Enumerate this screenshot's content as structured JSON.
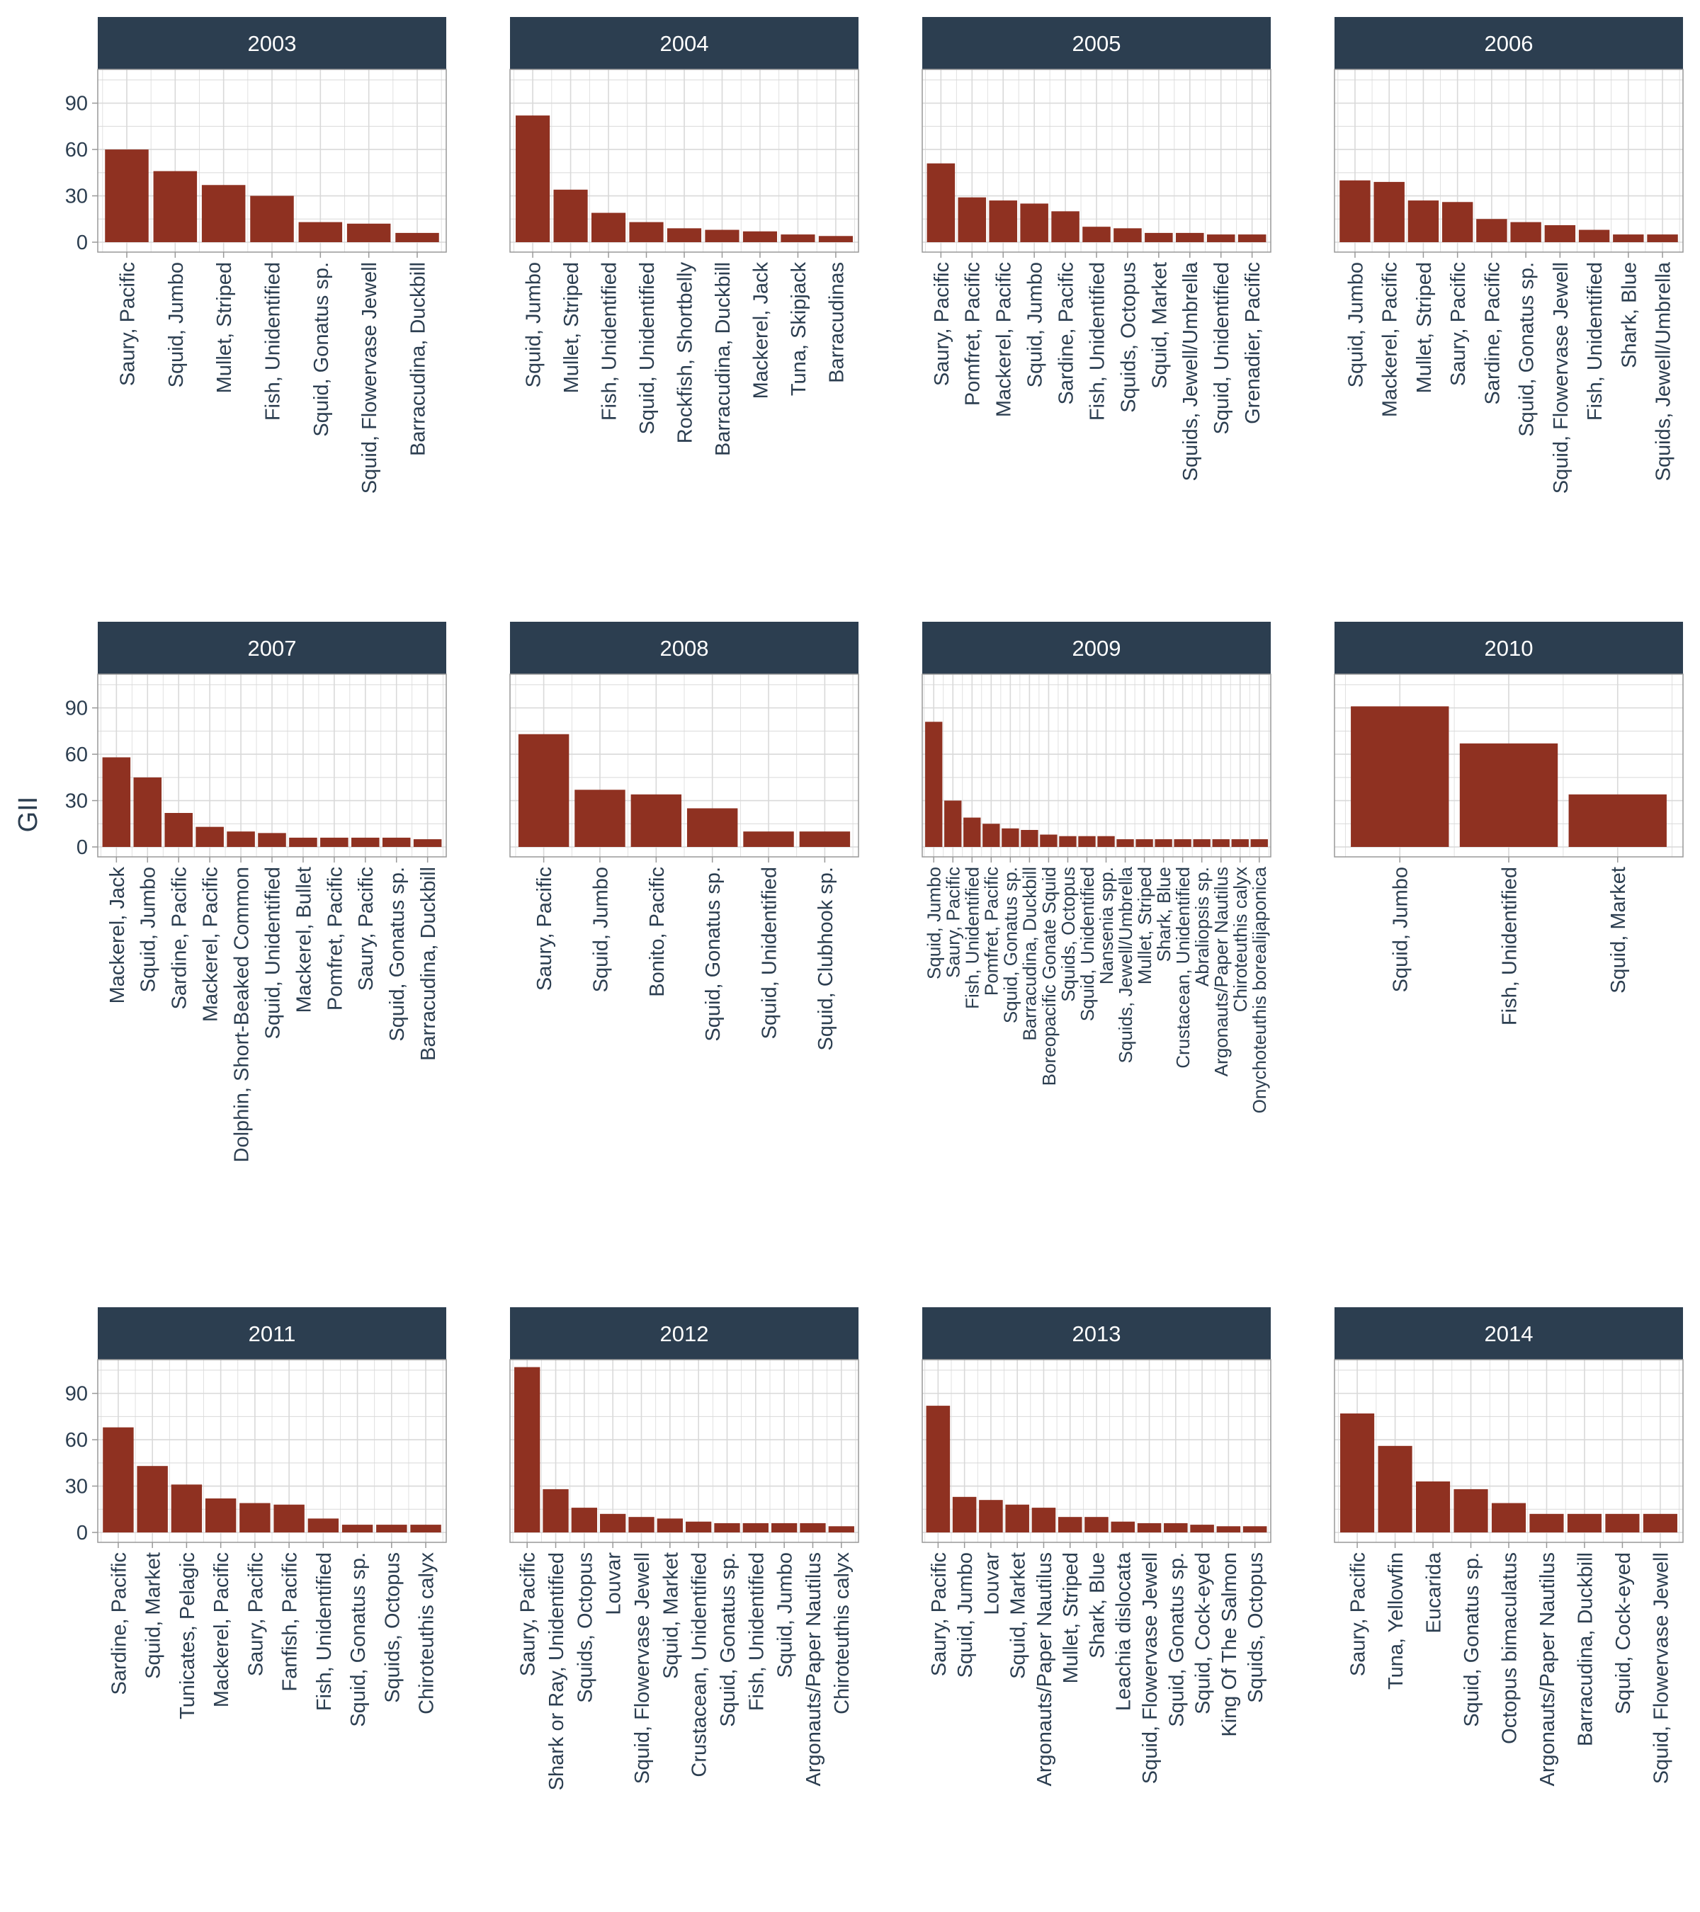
{
  "colors": {
    "bar": "#8f3121",
    "strip_bg": "#2c3e50",
    "strip_text": "#ffffff",
    "grid": "#d9d9d9",
    "panel_border": "#999999",
    "axis_text": "#2c3e50"
  },
  "ylabel": "GII",
  "chart_data": [
    {
      "type": "bar",
      "title": "2003",
      "ylim": [
        0,
        110
      ],
      "yticks": [
        0,
        30,
        60,
        90
      ],
      "categories": [
        "Saury, Pacific",
        "Squid, Jumbo",
        "Mullet, Striped",
        "Fish, Unidentified",
        "Squid, Gonatus sp.",
        "Squid, Flowervase Jewell",
        "Barracudina, Duckbill"
      ],
      "values": [
        60,
        46,
        37,
        30,
        13,
        12,
        6
      ]
    },
    {
      "type": "bar",
      "title": "2004",
      "ylim": [
        0,
        110
      ],
      "yticks": [
        0,
        30,
        60,
        90
      ],
      "categories": [
        "Squid, Jumbo",
        "Mullet, Striped",
        "Fish, Unidentified",
        "Squid, Unidentified",
        "Rockfish, Shortbelly",
        "Barracudina, Duckbill",
        "Mackerel, Jack",
        "Tuna, Skipjack",
        "Barracudinas"
      ],
      "values": [
        82,
        34,
        19,
        13,
        9,
        8,
        7,
        5,
        4
      ]
    },
    {
      "type": "bar",
      "title": "2005",
      "ylim": [
        0,
        110
      ],
      "yticks": [
        0,
        30,
        60,
        90
      ],
      "categories": [
        "Saury, Pacific",
        "Pomfret, Pacific",
        "Mackerel, Pacific",
        "Squid, Jumbo",
        "Sardine, Pacific",
        "Fish, Unidentified",
        "Squids, Octopus",
        "Squid, Market",
        "Squids, Jewell/Umbrella",
        "Squid, Unidentified",
        "Grenadier, Pacific"
      ],
      "values": [
        51,
        29,
        27,
        25,
        20,
        10,
        9,
        6,
        6,
        5,
        5
      ]
    },
    {
      "type": "bar",
      "title": "2006",
      "ylim": [
        0,
        110
      ],
      "yticks": [
        0,
        30,
        60,
        90
      ],
      "categories": [
        "Squid, Jumbo",
        "Mackerel, Pacific",
        "Mullet, Striped",
        "Saury, Pacific",
        "Sardine, Pacific",
        "Squid, Gonatus sp.",
        "Squid, Flowervase Jewell",
        "Fish, Unidentified",
        "Shark, Blue",
        "Squids, Jewell/Umbrella"
      ],
      "values": [
        40,
        39,
        27,
        26,
        15,
        13,
        11,
        8,
        5,
        5
      ]
    },
    {
      "type": "bar",
      "title": "2007",
      "ylim": [
        0,
        110
      ],
      "yticks": [
        0,
        30,
        60,
        90
      ],
      "categories": [
        "Mackerel, Jack",
        "Squid, Jumbo",
        "Sardine, Pacific",
        "Mackerel, Pacific",
        "Dolphin, Short-Beaked Common",
        "Squid, Unidentified",
        "Mackerel, Bullet",
        "Pomfret, Pacific",
        "Saury, Pacific",
        "Squid, Gonatus sp.",
        "Barracudina, Duckbill"
      ],
      "values": [
        58,
        45,
        22,
        13,
        10,
        9,
        6,
        6,
        6,
        6,
        5
      ]
    },
    {
      "type": "bar",
      "title": "2008",
      "ylim": [
        0,
        110
      ],
      "yticks": [
        0,
        30,
        60,
        90
      ],
      "categories": [
        "Saury, Pacific",
        "Squid, Jumbo",
        "Bonito, Pacific",
        "Squid, Gonatus sp.",
        "Squid, Unidentified",
        "Squid, Clubhook sp."
      ],
      "values": [
        73,
        37,
        34,
        25,
        10,
        10
      ]
    },
    {
      "type": "bar",
      "title": "2009",
      "ylim": [
        0,
        110
      ],
      "yticks": [
        0,
        30,
        60,
        90
      ],
      "categories": [
        "Squid, Jumbo",
        "Saury, Pacific",
        "Fish, Unidentified",
        "Pomfret, Pacific",
        "Squid, Gonatus sp.",
        "Barracudina, Duckbill",
        "Boreopacific Gonate Squid",
        "Squids, Octopus",
        "Squid, Unidentified",
        "Nansenia spp.",
        "Squids, Jewell/Umbrella",
        "Mullet, Striped",
        "Shark, Blue",
        "Crustacean, Unidentified",
        "Abraliopsis sp.",
        "Argonauts/Paper Nautilus",
        "Chiroteuthis calyx",
        "Onychoteuthis borealijaponica"
      ],
      "values": [
        81,
        30,
        19,
        15,
        12,
        11,
        8,
        7,
        7,
        7,
        5,
        5,
        5,
        5,
        5,
        5,
        5,
        5
      ]
    },
    {
      "type": "bar",
      "title": "2010",
      "ylim": [
        0,
        110
      ],
      "yticks": [
        0,
        30,
        60,
        90
      ],
      "categories": [
        "Squid, Jumbo",
        "Fish, Unidentified",
        "Squid, Market"
      ],
      "values": [
        91,
        67,
        34
      ]
    },
    {
      "type": "bar",
      "title": "2011",
      "ylim": [
        0,
        110
      ],
      "yticks": [
        0,
        30,
        60,
        90
      ],
      "categories": [
        "Sardine, Pacific",
        "Squid, Market",
        "Tunicates, Pelagic",
        "Mackerel, Pacific",
        "Saury, Pacific",
        "Fanfish, Pacific",
        "Fish, Unidentified",
        "Squid, Gonatus sp.",
        "Squids, Octopus",
        "Chiroteuthis calyx"
      ],
      "values": [
        68,
        43,
        31,
        22,
        19,
        18,
        9,
        5,
        5,
        5
      ]
    },
    {
      "type": "bar",
      "title": "2012",
      "ylim": [
        0,
        110
      ],
      "yticks": [
        0,
        30,
        60,
        90
      ],
      "categories": [
        "Saury, Pacific",
        "Shark or Ray, Unidentified",
        "Squids, Octopus",
        "Louvar",
        "Squid, Flowervase Jewell",
        "Squid, Market",
        "Crustacean, Unidentified",
        "Squid, Gonatus sp.",
        "Fish, Unidentified",
        "Squid, Jumbo",
        "Argonauts/Paper Nautilus",
        "Chiroteuthis calyx"
      ],
      "values": [
        107,
        28,
        16,
        12,
        10,
        9,
        7,
        6,
        6,
        6,
        6,
        4
      ]
    },
    {
      "type": "bar",
      "title": "2013",
      "ylim": [
        0,
        110
      ],
      "yticks": [
        0,
        30,
        60,
        90
      ],
      "categories": [
        "Saury, Pacific",
        "Squid, Jumbo",
        "Louvar",
        "Squid, Market",
        "Argonauts/Paper Nautilus",
        "Mullet, Striped",
        "Shark, Blue",
        "Leachia dislocata",
        "Squid, Flowervase Jewell",
        "Squid, Gonatus sp.",
        "Squid, Cock-eyed",
        "King Of The Salmon",
        "Squids, Octopus"
      ],
      "values": [
        82,
        23,
        21,
        18,
        16,
        10,
        10,
        7,
        6,
        6,
        5,
        4,
        4
      ]
    },
    {
      "type": "bar",
      "title": "2014",
      "ylim": [
        0,
        110
      ],
      "yticks": [
        0,
        30,
        60,
        90
      ],
      "categories": [
        "Saury, Pacific",
        "Tuna, Yellowfin",
        "Eucarida",
        "Squid, Gonatus sp.",
        "Octopus bimaculatus",
        "Argonauts/Paper Nautilus",
        "Barracudina, Duckbill",
        "Squid, Cock-eyed",
        "Squid, Flowervase Jewell"
      ],
      "values": [
        77,
        56,
        33,
        28,
        19,
        12,
        12,
        12,
        12
      ]
    }
  ]
}
